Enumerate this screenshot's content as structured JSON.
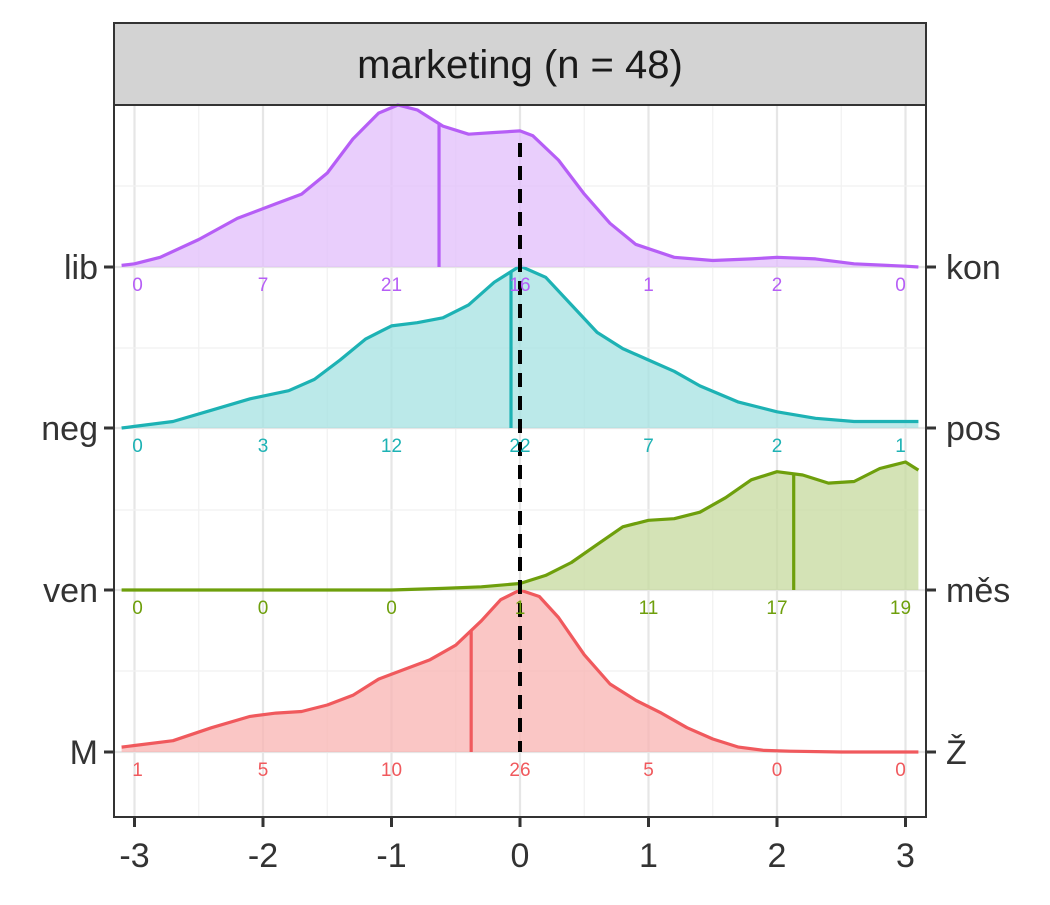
{
  "chart_data": {
    "type": "ridgeline-density",
    "facet_title": "marketing (n = 48)",
    "x_ticks": [
      "-3",
      "-2",
      "-1",
      "0",
      "1",
      "2",
      "3"
    ],
    "xlim": [
      -3.1,
      3.1
    ],
    "reference_line_x": 0,
    "grid": true,
    "series": [
      {
        "left_label": "M",
        "right_label": "Ž",
        "color": "#F0595D",
        "fill": "#F8B3B2",
        "mean": -0.38,
        "counts": [
          1,
          5,
          10,
          26,
          5,
          0,
          0
        ],
        "count_labels": [
          "1",
          "5",
          "10",
          "26",
          "5",
          "0",
          "0"
        ],
        "density": [
          [
            -3.1,
            0.03
          ],
          [
            -3.0,
            0.04
          ],
          [
            -2.7,
            0.07
          ],
          [
            -2.4,
            0.15
          ],
          [
            -2.1,
            0.22
          ],
          [
            -1.9,
            0.24
          ],
          [
            -1.7,
            0.25
          ],
          [
            -1.5,
            0.29
          ],
          [
            -1.3,
            0.35
          ],
          [
            -1.1,
            0.45
          ],
          [
            -0.9,
            0.51
          ],
          [
            -0.7,
            0.57
          ],
          [
            -0.5,
            0.66
          ],
          [
            -0.3,
            0.81
          ],
          [
            -0.15,
            0.94
          ],
          [
            0.0,
            1.0
          ],
          [
            0.15,
            0.96
          ],
          [
            0.3,
            0.83
          ],
          [
            0.5,
            0.6
          ],
          [
            0.7,
            0.42
          ],
          [
            0.9,
            0.32
          ],
          [
            1.1,
            0.24
          ],
          [
            1.3,
            0.15
          ],
          [
            1.5,
            0.08
          ],
          [
            1.7,
            0.03
          ],
          [
            1.9,
            0.01
          ],
          [
            2.1,
            0.005
          ],
          [
            2.5,
            0.0
          ],
          [
            3.1,
            0.0
          ]
        ]
      },
      {
        "left_label": "ven",
        "right_label": "měs",
        "color": "#6E9F0C",
        "fill": "#C5D99E",
        "mean": 2.13,
        "counts": [
          0,
          0,
          0,
          1,
          11,
          17,
          19
        ],
        "count_labels": [
          "0",
          "0",
          "0",
          "1",
          "11",
          "17",
          "19"
        ],
        "density": [
          [
            -3.1,
            0.0
          ],
          [
            -1.0,
            0.0
          ],
          [
            -0.6,
            0.01
          ],
          [
            -0.3,
            0.02
          ],
          [
            0.0,
            0.04
          ],
          [
            0.2,
            0.09
          ],
          [
            0.4,
            0.17
          ],
          [
            0.6,
            0.28
          ],
          [
            0.8,
            0.39
          ],
          [
            1.0,
            0.43
          ],
          [
            1.2,
            0.44
          ],
          [
            1.4,
            0.48
          ],
          [
            1.6,
            0.57
          ],
          [
            1.8,
            0.68
          ],
          [
            2.0,
            0.73
          ],
          [
            2.2,
            0.71
          ],
          [
            2.4,
            0.66
          ],
          [
            2.6,
            0.67
          ],
          [
            2.8,
            0.75
          ],
          [
            3.0,
            0.79
          ],
          [
            3.1,
            0.74
          ]
        ]
      },
      {
        "left_label": "neg",
        "right_label": "pos",
        "color": "#1DB2B4",
        "fill": "#A4E1E1",
        "mean": -0.07,
        "counts": [
          0,
          3,
          12,
          22,
          7,
          2,
          1
        ],
        "count_labels": [
          "0",
          "3",
          "12",
          "22",
          "7",
          "2",
          "1"
        ],
        "density": [
          [
            -3.1,
            0.0
          ],
          [
            -3.0,
            0.01
          ],
          [
            -2.7,
            0.04
          ],
          [
            -2.4,
            0.11
          ],
          [
            -2.1,
            0.18
          ],
          [
            -1.8,
            0.23
          ],
          [
            -1.6,
            0.3
          ],
          [
            -1.4,
            0.42
          ],
          [
            -1.2,
            0.55
          ],
          [
            -1.0,
            0.63
          ],
          [
            -0.8,
            0.65
          ],
          [
            -0.6,
            0.68
          ],
          [
            -0.4,
            0.76
          ],
          [
            -0.2,
            0.9
          ],
          [
            0.0,
            1.0
          ],
          [
            0.2,
            0.93
          ],
          [
            0.4,
            0.76
          ],
          [
            0.6,
            0.59
          ],
          [
            0.8,
            0.49
          ],
          [
            1.0,
            0.42
          ],
          [
            1.2,
            0.35
          ],
          [
            1.4,
            0.26
          ],
          [
            1.7,
            0.16
          ],
          [
            2.0,
            0.1
          ],
          [
            2.3,
            0.06
          ],
          [
            2.6,
            0.04
          ],
          [
            3.1,
            0.04
          ]
        ]
      },
      {
        "left_label": "lib",
        "right_label": "kon",
        "color": "#B65EF6",
        "fill": "#E1BEFB",
        "mean": -0.63,
        "counts": [
          0,
          7,
          21,
          16,
          1,
          2,
          0
        ],
        "count_labels": [
          "0",
          "7",
          "21",
          "16",
          "1",
          "2",
          "0"
        ],
        "density": [
          [
            -3.1,
            0.01
          ],
          [
            -3.0,
            0.02
          ],
          [
            -2.8,
            0.06
          ],
          [
            -2.5,
            0.17
          ],
          [
            -2.2,
            0.3
          ],
          [
            -1.9,
            0.39
          ],
          [
            -1.7,
            0.45
          ],
          [
            -1.5,
            0.58
          ],
          [
            -1.3,
            0.79
          ],
          [
            -1.1,
            0.95
          ],
          [
            -0.95,
            1.0
          ],
          [
            -0.8,
            0.97
          ],
          [
            -0.6,
            0.87
          ],
          [
            -0.4,
            0.82
          ],
          [
            -0.2,
            0.83
          ],
          [
            0.0,
            0.84
          ],
          [
            0.1,
            0.81
          ],
          [
            0.3,
            0.66
          ],
          [
            0.5,
            0.45
          ],
          [
            0.7,
            0.27
          ],
          [
            0.9,
            0.14
          ],
          [
            1.2,
            0.06
          ],
          [
            1.5,
            0.04
          ],
          [
            1.8,
            0.05
          ],
          [
            2.0,
            0.06
          ],
          [
            2.3,
            0.05
          ],
          [
            2.6,
            0.02
          ],
          [
            3.0,
            0.005
          ],
          [
            3.1,
            0.0
          ]
        ]
      }
    ]
  }
}
